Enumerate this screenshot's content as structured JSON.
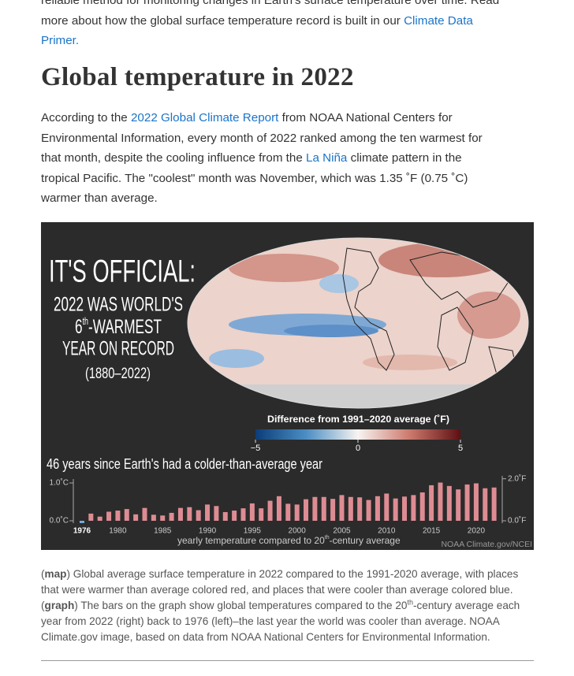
{
  "intro": {
    "lines": [
      [
        {
          "text": "reliable method for monitoring changes in Earth's surface temperature over time. Read"
        }
      ],
      [
        {
          "text": "more about how the global surface temperature record is built in our "
        },
        {
          "text": "Climate Data",
          "link": true
        }
      ],
      [
        {
          "text": "Primer.",
          "link": true
        }
      ]
    ]
  },
  "heading": "Global temperature in 2022",
  "paragraph": {
    "lines": [
      [
        {
          "text": "According to the "
        },
        {
          "text": "2022 Global Climate Report",
          "link": true
        },
        {
          "text": " from NOAA National Centers for"
        }
      ],
      [
        {
          "text": "Environmental Information, every month of 2022 ranked among the ten warmest for"
        }
      ],
      [
        {
          "text": "that month, despite the cooling influence from the "
        },
        {
          "text": "La Niña",
          "link": true
        },
        {
          "text": " climate pattern in the"
        }
      ],
      [
        {
          "text": "tropical Pacific. The \"coolest\" month was November, which was 1.35 ˚F (0.75 ˚C)"
        }
      ],
      [
        {
          "text": "warmer than average."
        }
      ]
    ]
  },
  "figure": {
    "headline": {
      "line1": "IT'S OFFICIAL:",
      "line2": "2022 WAS WORLD'S",
      "line3": [
        "6",
        "th",
        "-WARMEST"
      ],
      "line4": "YEAR ON RECORD",
      "line5": "(1880–2022)"
    },
    "colorbar": {
      "label": "Difference from 1991–2020 average (˚F)",
      "range": [
        -5,
        5
      ],
      "ticks": [
        {
          "value": -5,
          "label": "−5"
        },
        0,
        5
      ]
    },
    "chart": {
      "type": "bar",
      "title": "46 years since Earth's had a colder-than-average year",
      "x_label": [
        "yearly temperature compared to 20",
        "th",
        "-century average"
      ],
      "x": [
        1976,
        1977,
        1978,
        1979,
        1980,
        1981,
        1982,
        1983,
        1984,
        1985,
        1986,
        1987,
        1988,
        1989,
        1990,
        1991,
        1992,
        1993,
        1994,
        1995,
        1996,
        1997,
        1998,
        1999,
        2000,
        2001,
        2002,
        2003,
        2004,
        2005,
        2006,
        2007,
        2008,
        2009,
        2010,
        2011,
        2012,
        2013,
        2014,
        2015,
        2016,
        2017,
        2018,
        2019,
        2020,
        2021,
        2022
      ],
      "values": [
        -0.06,
        0.19,
        0.11,
        0.24,
        0.27,
        0.31,
        0.17,
        0.34,
        0.16,
        0.14,
        0.21,
        0.34,
        0.36,
        0.28,
        0.43,
        0.39,
        0.23,
        0.27,
        0.33,
        0.46,
        0.33,
        0.53,
        0.65,
        0.45,
        0.43,
        0.57,
        0.63,
        0.63,
        0.58,
        0.68,
        0.63,
        0.62,
        0.55,
        0.65,
        0.72,
        0.59,
        0.64,
        0.68,
        0.75,
        0.94,
        1.01,
        0.92,
        0.83,
        0.96,
        0.99,
        0.86,
        0.88
      ],
      "color": "#de8c93",
      "negative_color": "#78aee0",
      "xlim": [
        1975,
        2023
      ],
      "xticks": [
        1976,
        1980,
        1985,
        1990,
        1995,
        2000,
        2005,
        2010,
        2015,
        2020
      ],
      "ylim": [
        -0.05,
        1.15
      ],
      "yticks": [
        {
          "value": 0,
          "label": "0.0˚C"
        },
        {
          "value": 1,
          "label": "1.0˚C"
        }
      ],
      "y2lim": [
        -0.09,
        2.07
      ],
      "y2ticks": [
        {
          "value": 0,
          "label": "0.0˚F"
        },
        {
          "value": 2,
          "label": "2.0˚F"
        }
      ]
    },
    "credit": "NOAA Climate.gov/NCEI"
  },
  "caption": {
    "lines": [
      [
        {
          "text": "("
        },
        {
          "text": "map",
          "bold": true
        },
        {
          "text": ") Global average surface temperature in 2022 compared to the 1991-2020 average, with places"
        }
      ],
      [
        {
          "text": "that were warmer than average colored red, and places that were cooler than average colored blue."
        }
      ],
      [
        {
          "text": "("
        },
        {
          "text": "graph",
          "bold": true
        },
        {
          "text": ") The bars on the graph show global temperatures compared to the 20"
        },
        {
          "text": "th",
          "sup": true
        },
        {
          "text": "-century average each"
        }
      ],
      [
        {
          "text": "year from 2022 (right) back to 1976 (left)–the last year the world was cooler than average. NOAA"
        }
      ],
      [
        {
          "text": "Climate.gov image, based on data from NOAA National Centers for Environmental Information."
        }
      ]
    ]
  }
}
